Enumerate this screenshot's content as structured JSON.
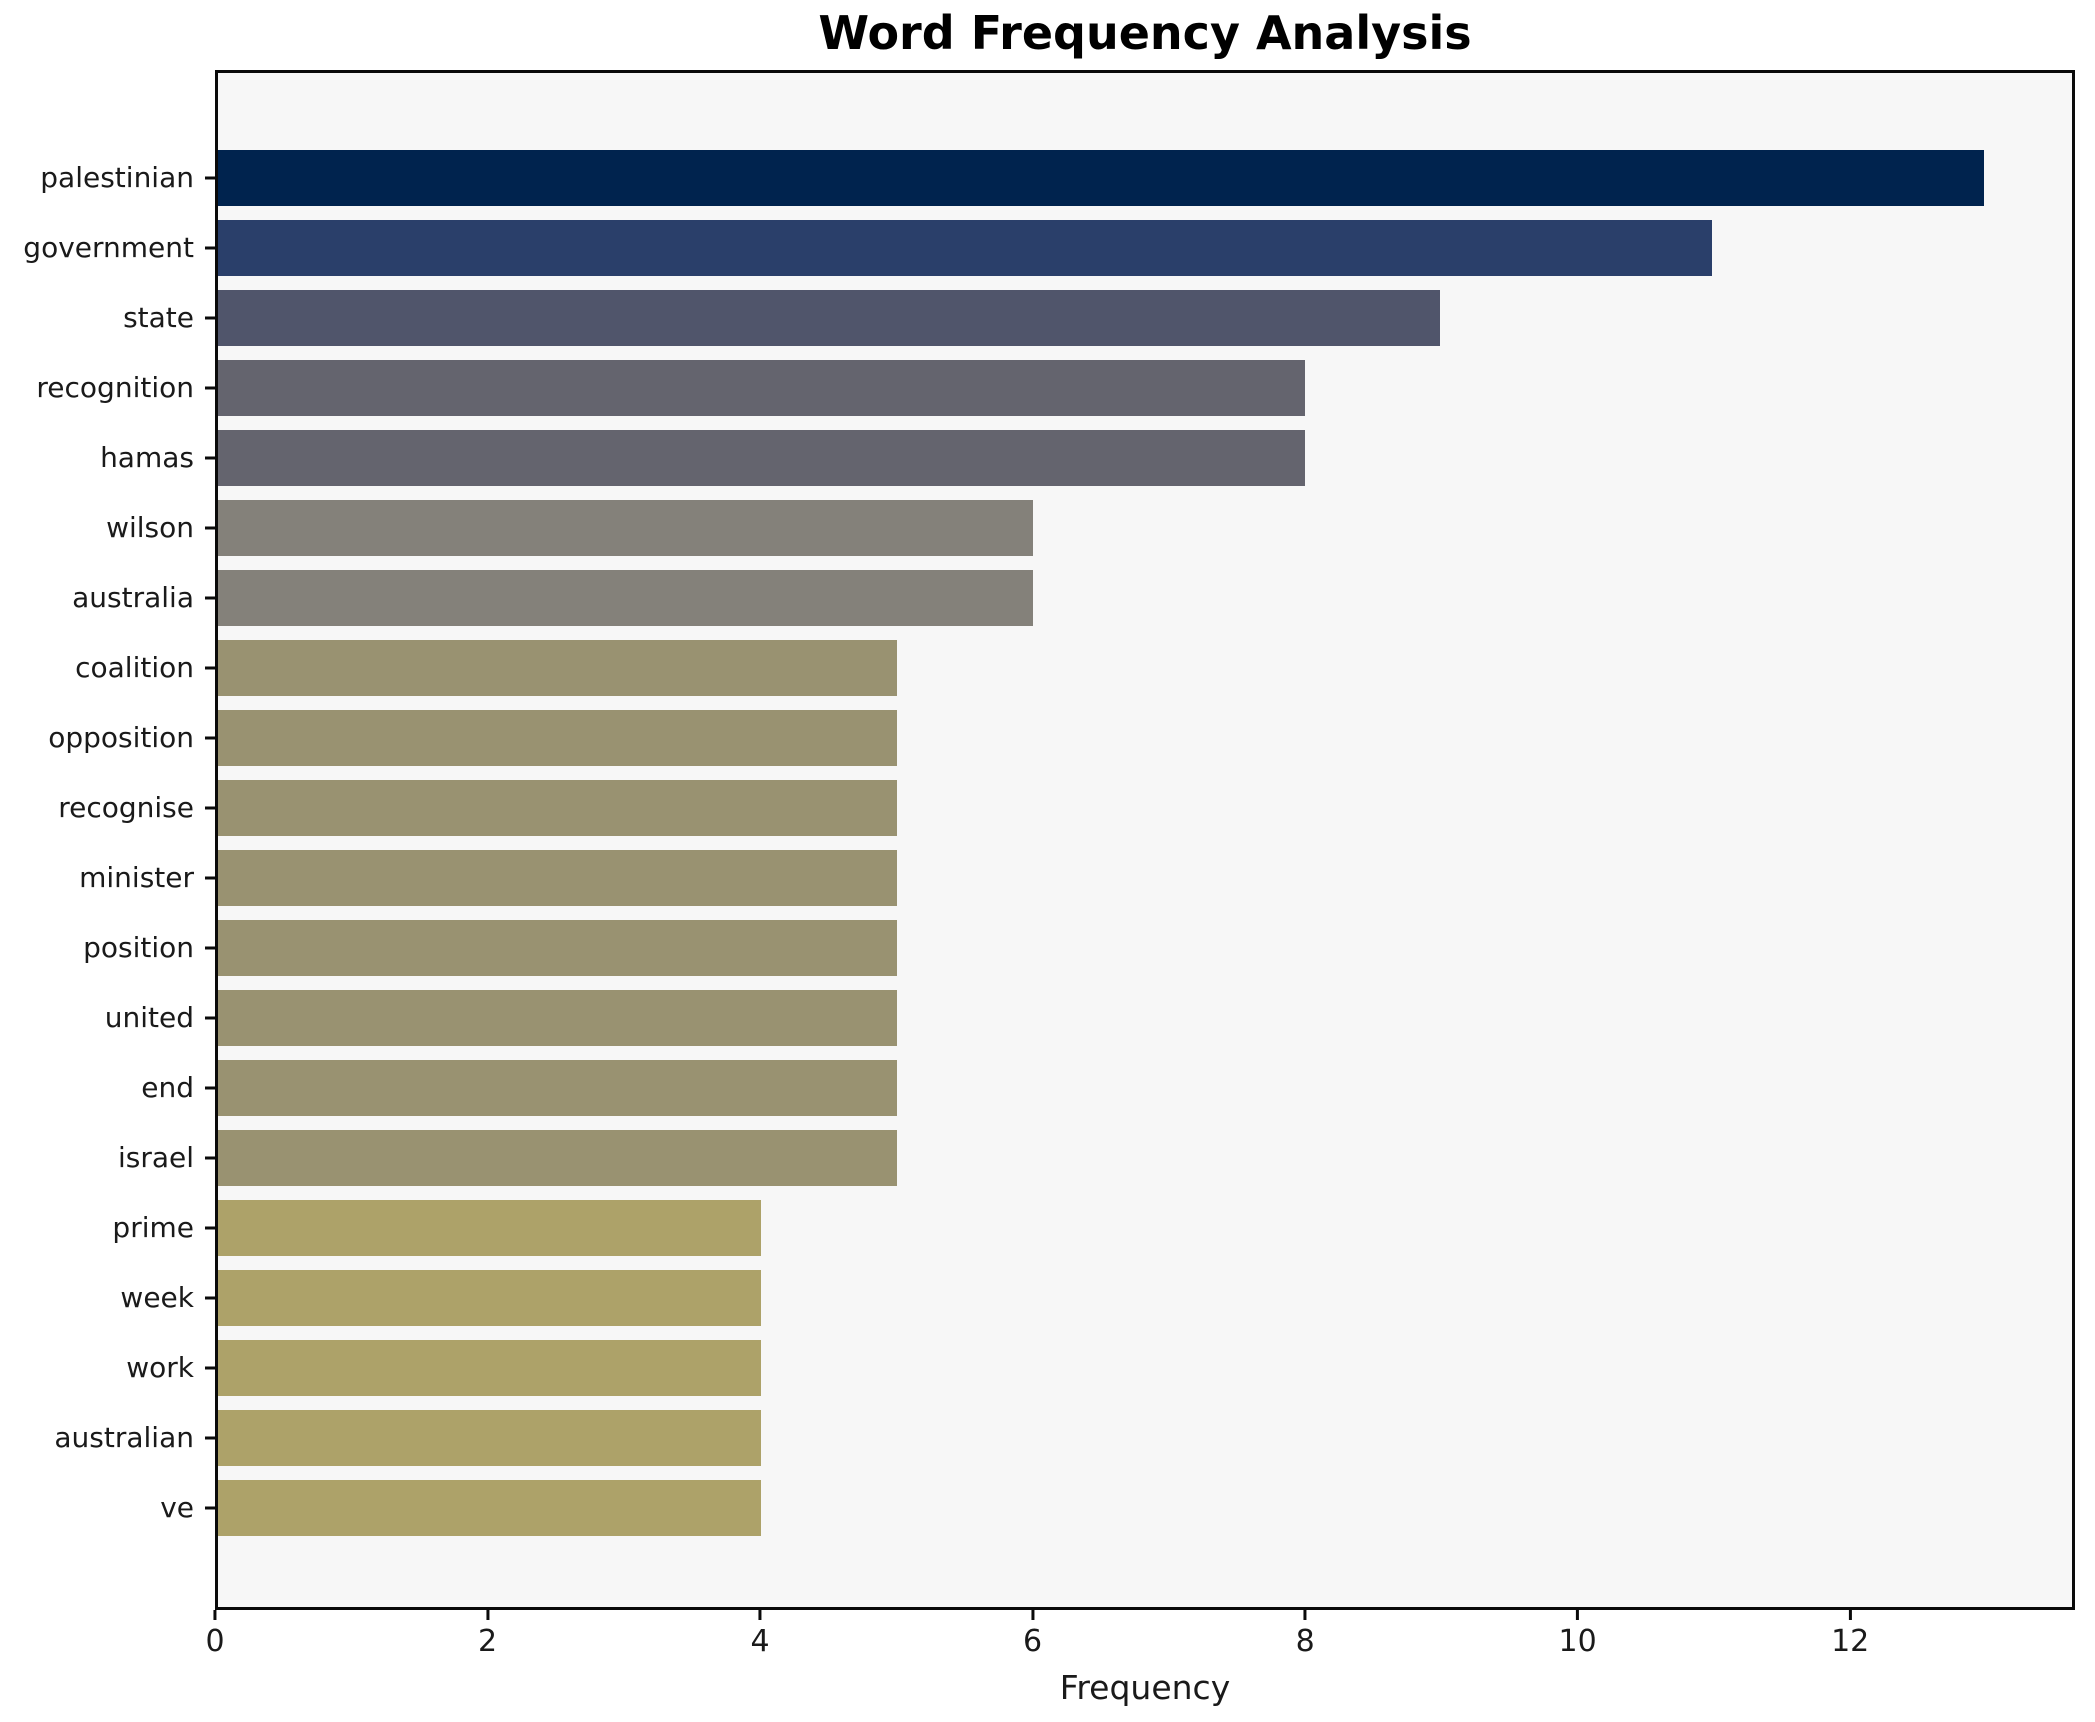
{
  "title": "Word Frequency Analysis",
  "chart_data": {
    "type": "bar",
    "orientation": "horizontal",
    "title": "Word Frequency Analysis",
    "xlabel": "Frequency",
    "ylabel": "",
    "grid": false,
    "legend": "none",
    "xlim": [
      0,
      13.65
    ],
    "xticks": [
      0,
      2,
      4,
      6,
      8,
      10,
      12
    ],
    "plot_background": "#f7f7f7",
    "page_background": "#ffffff",
    "spine_color": "#0a0a0a",
    "text_color": "#1a1a1a",
    "categories": [
      "palestinian",
      "government",
      "state",
      "recognition",
      "hamas",
      "wilson",
      "australia",
      "coalition",
      "opposition",
      "recognise",
      "minister",
      "position",
      "united",
      "end",
      "israel",
      "prime",
      "week",
      "work",
      "australian",
      "ve"
    ],
    "values": [
      13,
      11,
      9,
      8,
      8,
      6,
      6,
      5,
      5,
      5,
      5,
      5,
      5,
      5,
      5,
      4,
      4,
      4,
      4,
      4
    ],
    "bar_colors": [
      "#00234e",
      "#2a3f6a",
      "#50556b",
      "#64646e",
      "#64646e",
      "#84817a",
      "#84817a",
      "#999271",
      "#999271",
      "#999271",
      "#999271",
      "#999271",
      "#999271",
      "#999271",
      "#999271",
      "#ada269",
      "#ada269",
      "#ada269",
      "#ada269",
      "#ada269"
    ]
  }
}
